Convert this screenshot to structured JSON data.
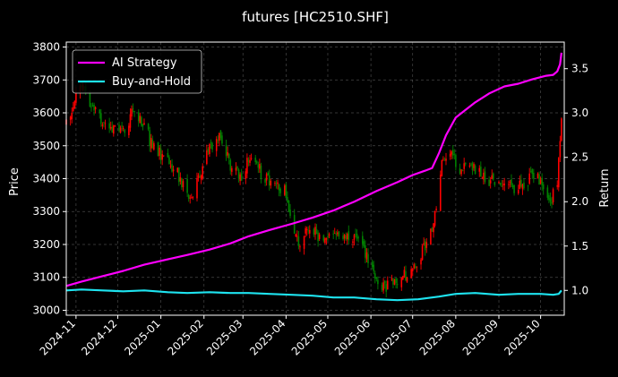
{
  "chart_data": {
    "type": "line",
    "title": "futures [HC2510.SHF]",
    "xlabel": "",
    "ylabel": "Price",
    "y2label": "Return",
    "grid": true,
    "legend_placement": "top-left",
    "x_range": [
      "2024-10-25",
      "2025-10-18"
    ],
    "ylim": [
      2985,
      3815
    ],
    "y2lim": [
      0.72,
      3.8
    ],
    "x_ticks": [
      "2024-11",
      "2024-12",
      "2025-01",
      "2025-02",
      "2025-03",
      "2025-04",
      "2025-05",
      "2025-06",
      "2025-07",
      "2025-08",
      "2025-09",
      "2025-10"
    ],
    "x_tick_dates": [
      "2024-11-01",
      "2024-12-01",
      "2025-01-01",
      "2025-02-01",
      "2025-03-01",
      "2025-04-01",
      "2025-05-01",
      "2025-06-01",
      "2025-07-01",
      "2025-08-01",
      "2025-09-01",
      "2025-10-01"
    ],
    "y_ticks": [
      3000,
      3100,
      3200,
      3300,
      3400,
      3500,
      3600,
      3700,
      3800
    ],
    "y2_ticks": [
      1.0,
      1.5,
      2.0,
      2.5,
      3.0,
      3.5
    ],
    "candle_colors": {
      "up": "#ff0000",
      "down": "#008000"
    },
    "price_path": {
      "dates": [
        "2024-10-25",
        "2024-10-31",
        "2024-11-05",
        "2024-11-12",
        "2024-11-20",
        "2024-11-28",
        "2024-12-05",
        "2024-12-12",
        "2024-12-20",
        "2024-12-27",
        "2025-01-06",
        "2025-01-14",
        "2025-01-21",
        "2025-02-05",
        "2025-02-12",
        "2025-02-20",
        "2025-02-27",
        "2025-03-06",
        "2025-03-14",
        "2025-03-24",
        "2025-04-01",
        "2025-04-07",
        "2025-04-11",
        "2025-04-18",
        "2025-04-25",
        "2025-05-08",
        "2025-05-16",
        "2025-05-23",
        "2025-05-30",
        "2025-06-05",
        "2025-06-12",
        "2025-06-19",
        "2025-06-26",
        "2025-07-03",
        "2025-07-10",
        "2025-07-17",
        "2025-07-22",
        "2025-07-28",
        "2025-08-05",
        "2025-08-12",
        "2025-08-20",
        "2025-08-28",
        "2025-09-05",
        "2025-09-12",
        "2025-09-19",
        "2025-09-26",
        "2025-10-09",
        "2025-10-13",
        "2025-10-16"
      ],
      "close": [
        3560,
        3640,
        3680,
        3620,
        3570,
        3560,
        3550,
        3600,
        3560,
        3490,
        3450,
        3410,
        3330,
        3490,
        3520,
        3440,
        3400,
        3460,
        3420,
        3380,
        3360,
        3230,
        3200,
        3250,
        3220,
        3220,
        3230,
        3200,
        3160,
        3080,
        3070,
        3090,
        3110,
        3130,
        3200,
        3280,
        3450,
        3480,
        3420,
        3440,
        3410,
        3390,
        3370,
        3370,
        3380,
        3420,
        3340,
        3400,
        3590
      ]
    },
    "series": [
      {
        "name": "AI Strategy",
        "color": "#ff00ff",
        "dates": [
          "2024-10-25",
          "2024-11-05",
          "2024-11-20",
          "2024-12-05",
          "2024-12-20",
          "2025-01-06",
          "2025-01-20",
          "2025-02-05",
          "2025-02-20",
          "2025-03-05",
          "2025-03-20",
          "2025-04-05",
          "2025-04-20",
          "2025-05-05",
          "2025-05-20",
          "2025-06-05",
          "2025-06-20",
          "2025-07-01",
          "2025-07-10",
          "2025-07-15",
          "2025-07-20",
          "2025-07-25",
          "2025-08-01",
          "2025-08-15",
          "2025-08-25",
          "2025-09-05",
          "2025-09-15",
          "2025-09-25",
          "2025-10-05",
          "2025-10-10",
          "2025-10-13",
          "2025-10-15",
          "2025-10-16"
        ],
        "values": [
          1.05,
          1.1,
          1.16,
          1.22,
          1.29,
          1.35,
          1.4,
          1.46,
          1.53,
          1.61,
          1.68,
          1.75,
          1.82,
          1.9,
          2.0,
          2.12,
          2.22,
          2.3,
          2.35,
          2.38,
          2.55,
          2.75,
          2.95,
          3.12,
          3.22,
          3.3,
          3.33,
          3.38,
          3.42,
          3.43,
          3.47,
          3.55,
          3.68
        ]
      },
      {
        "name": "Buy-and-Hold",
        "color": "#1ee3ef",
        "dates": [
          "2024-10-25",
          "2024-11-05",
          "2024-11-20",
          "2024-12-05",
          "2024-12-20",
          "2025-01-06",
          "2025-01-20",
          "2025-02-05",
          "2025-02-20",
          "2025-03-05",
          "2025-03-20",
          "2025-04-05",
          "2025-04-20",
          "2025-05-05",
          "2025-05-20",
          "2025-06-05",
          "2025-06-20",
          "2025-07-05",
          "2025-07-20",
          "2025-08-01",
          "2025-08-15",
          "2025-09-01",
          "2025-09-15",
          "2025-10-01",
          "2025-10-10",
          "2025-10-14",
          "2025-10-16"
        ],
        "values": [
          1.0,
          1.01,
          1.0,
          0.99,
          1.0,
          0.98,
          0.97,
          0.98,
          0.97,
          0.97,
          0.96,
          0.95,
          0.94,
          0.92,
          0.92,
          0.9,
          0.89,
          0.9,
          0.93,
          0.96,
          0.97,
          0.95,
          0.96,
          0.96,
          0.95,
          0.96,
          1.0
        ]
      }
    ]
  }
}
